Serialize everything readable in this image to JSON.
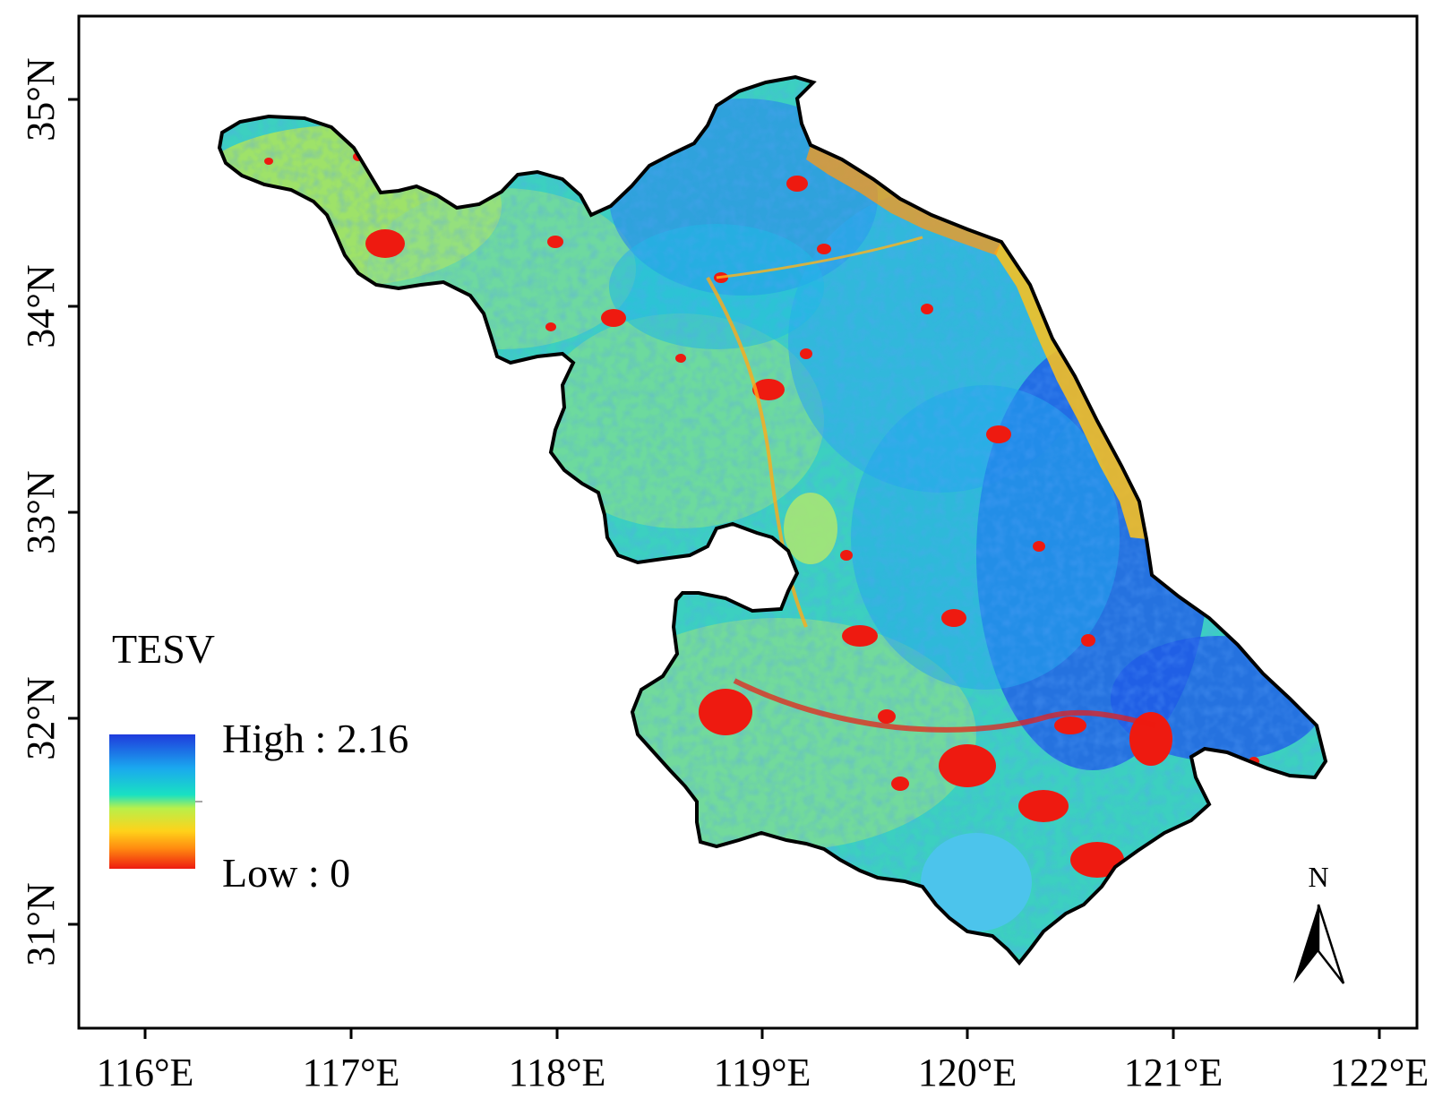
{
  "map": {
    "axes": {
      "x_ticks": [
        "116°E",
        "117°E",
        "118°E",
        "119°E",
        "120°E",
        "121°E",
        "122°E"
      ],
      "y_ticks": [
        "35°N",
        "34°N",
        "33°N",
        "32°N",
        "31°N"
      ]
    },
    "legend": {
      "title": "TESV",
      "high_label": "High : 2.16",
      "low_label": "Low : 0",
      "colors": [
        "#1f3bdc",
        "#1aa8ef",
        "#19e1c2",
        "#b9f04a",
        "#ffd21a",
        "#ff8a10",
        "#ee1c10"
      ]
    },
    "north_arrow": {
      "label": "N"
    },
    "palette": {
      "high": "#1f5ae6",
      "mid_high": "#1ab3ea",
      "mid": "#3ed8b8",
      "mid_low": "#c8ee46",
      "low": "#ffcf1a",
      "urban": "#ee1a10",
      "lake": "#4cc4ec"
    }
  }
}
